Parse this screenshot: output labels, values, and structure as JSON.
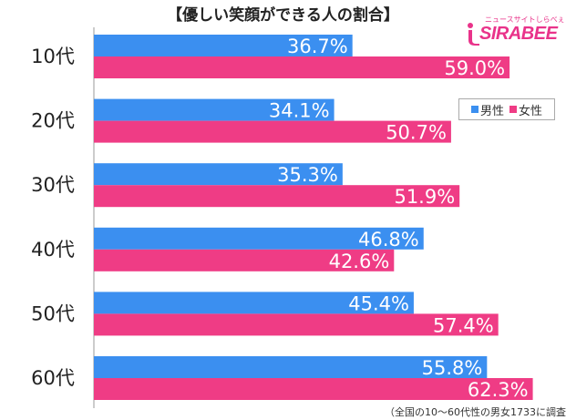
{
  "title": "【優しい笑顔ができる人の割合】",
  "logo": {
    "kana": "ニュースサイトしらべぇ",
    "brand": "SIRABEE"
  },
  "note": "（全国の10～60代性の男女1733に調査）",
  "colors": {
    "male": "#3b8ff0",
    "female": "#ef3c85",
    "text": "#ffffff",
    "label": "#222222"
  },
  "chart_data": {
    "type": "bar",
    "orientation": "horizontal",
    "categories": [
      "10代",
      "20代",
      "30代",
      "40代",
      "50代",
      "60代"
    ],
    "series": [
      {
        "name": "男性",
        "values": [
          36.7,
          34.1,
          35.3,
          46.8,
          45.4,
          55.8
        ],
        "labels": [
          "36.7%",
          "34.1%",
          "35.3%",
          "46.8%",
          "45.4%",
          "55.8%"
        ]
      },
      {
        "name": "女性",
        "values": [
          59.0,
          50.7,
          51.9,
          42.6,
          57.4,
          62.3
        ],
        "labels": [
          "59.0%",
          "50.7%",
          "51.9%",
          "42.6%",
          "57.4%",
          "62.3%"
        ]
      }
    ],
    "xlim": [
      0,
      100
    ],
    "legend": "top-right",
    "grid": false
  }
}
